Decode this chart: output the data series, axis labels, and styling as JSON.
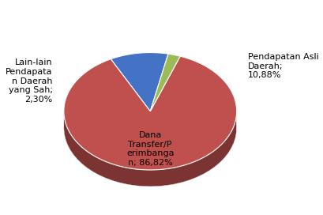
{
  "labels": [
    "Pendapatan Asli\nDaerah;\n10,88%",
    "Dana\nTransfer/P\nerimbanga\nn; 86,82%",
    "Lain-lain\nPendapata\nn Daerah\nyang Sah;\n2,30%"
  ],
  "values": [
    10.88,
    86.82,
    2.3
  ],
  "colors": [
    "#4472C4",
    "#C0504D",
    "#9BBB59"
  ],
  "startangle": 78,
  "background_color": "#FFFFFF",
  "label_fontsize": 9
}
